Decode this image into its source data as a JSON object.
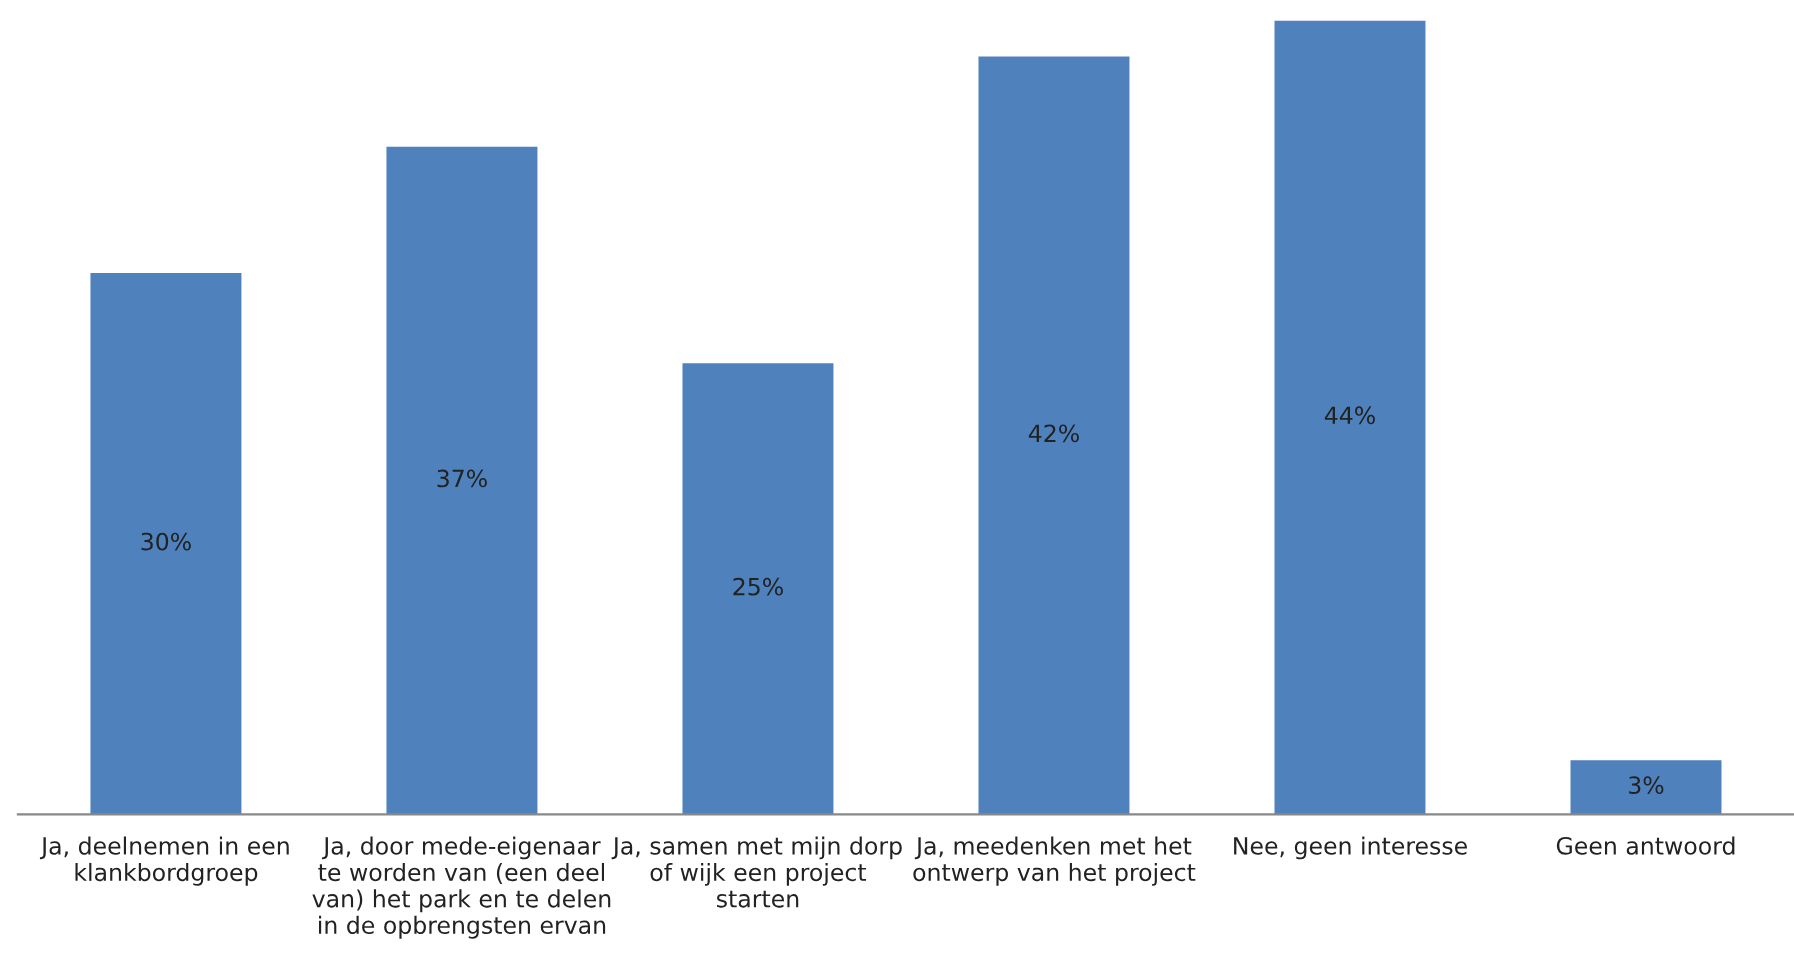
{
  "chart_data": {
    "type": "bar",
    "categories": [
      "Ja, deelnemen in een\nklankbordgroep",
      "Ja, door mede-eigenaar\nte worden van (een deel\nvan) het park en te delen\nin de opbrengsten ervan",
      "Ja, samen met mijn dorp\nof wijk een project\nstarten",
      "Ja, meedenken met het\nontwerp van het project",
      "Nee, geen interesse",
      "Geen antwoord"
    ],
    "values": [
      30,
      37,
      25,
      42,
      44,
      3
    ],
    "value_labels": [
      "30%",
      "37%",
      "25%",
      "42%",
      "44%",
      "3%"
    ],
    "color": "#4f81bd",
    "grid": false,
    "legend": false
  }
}
